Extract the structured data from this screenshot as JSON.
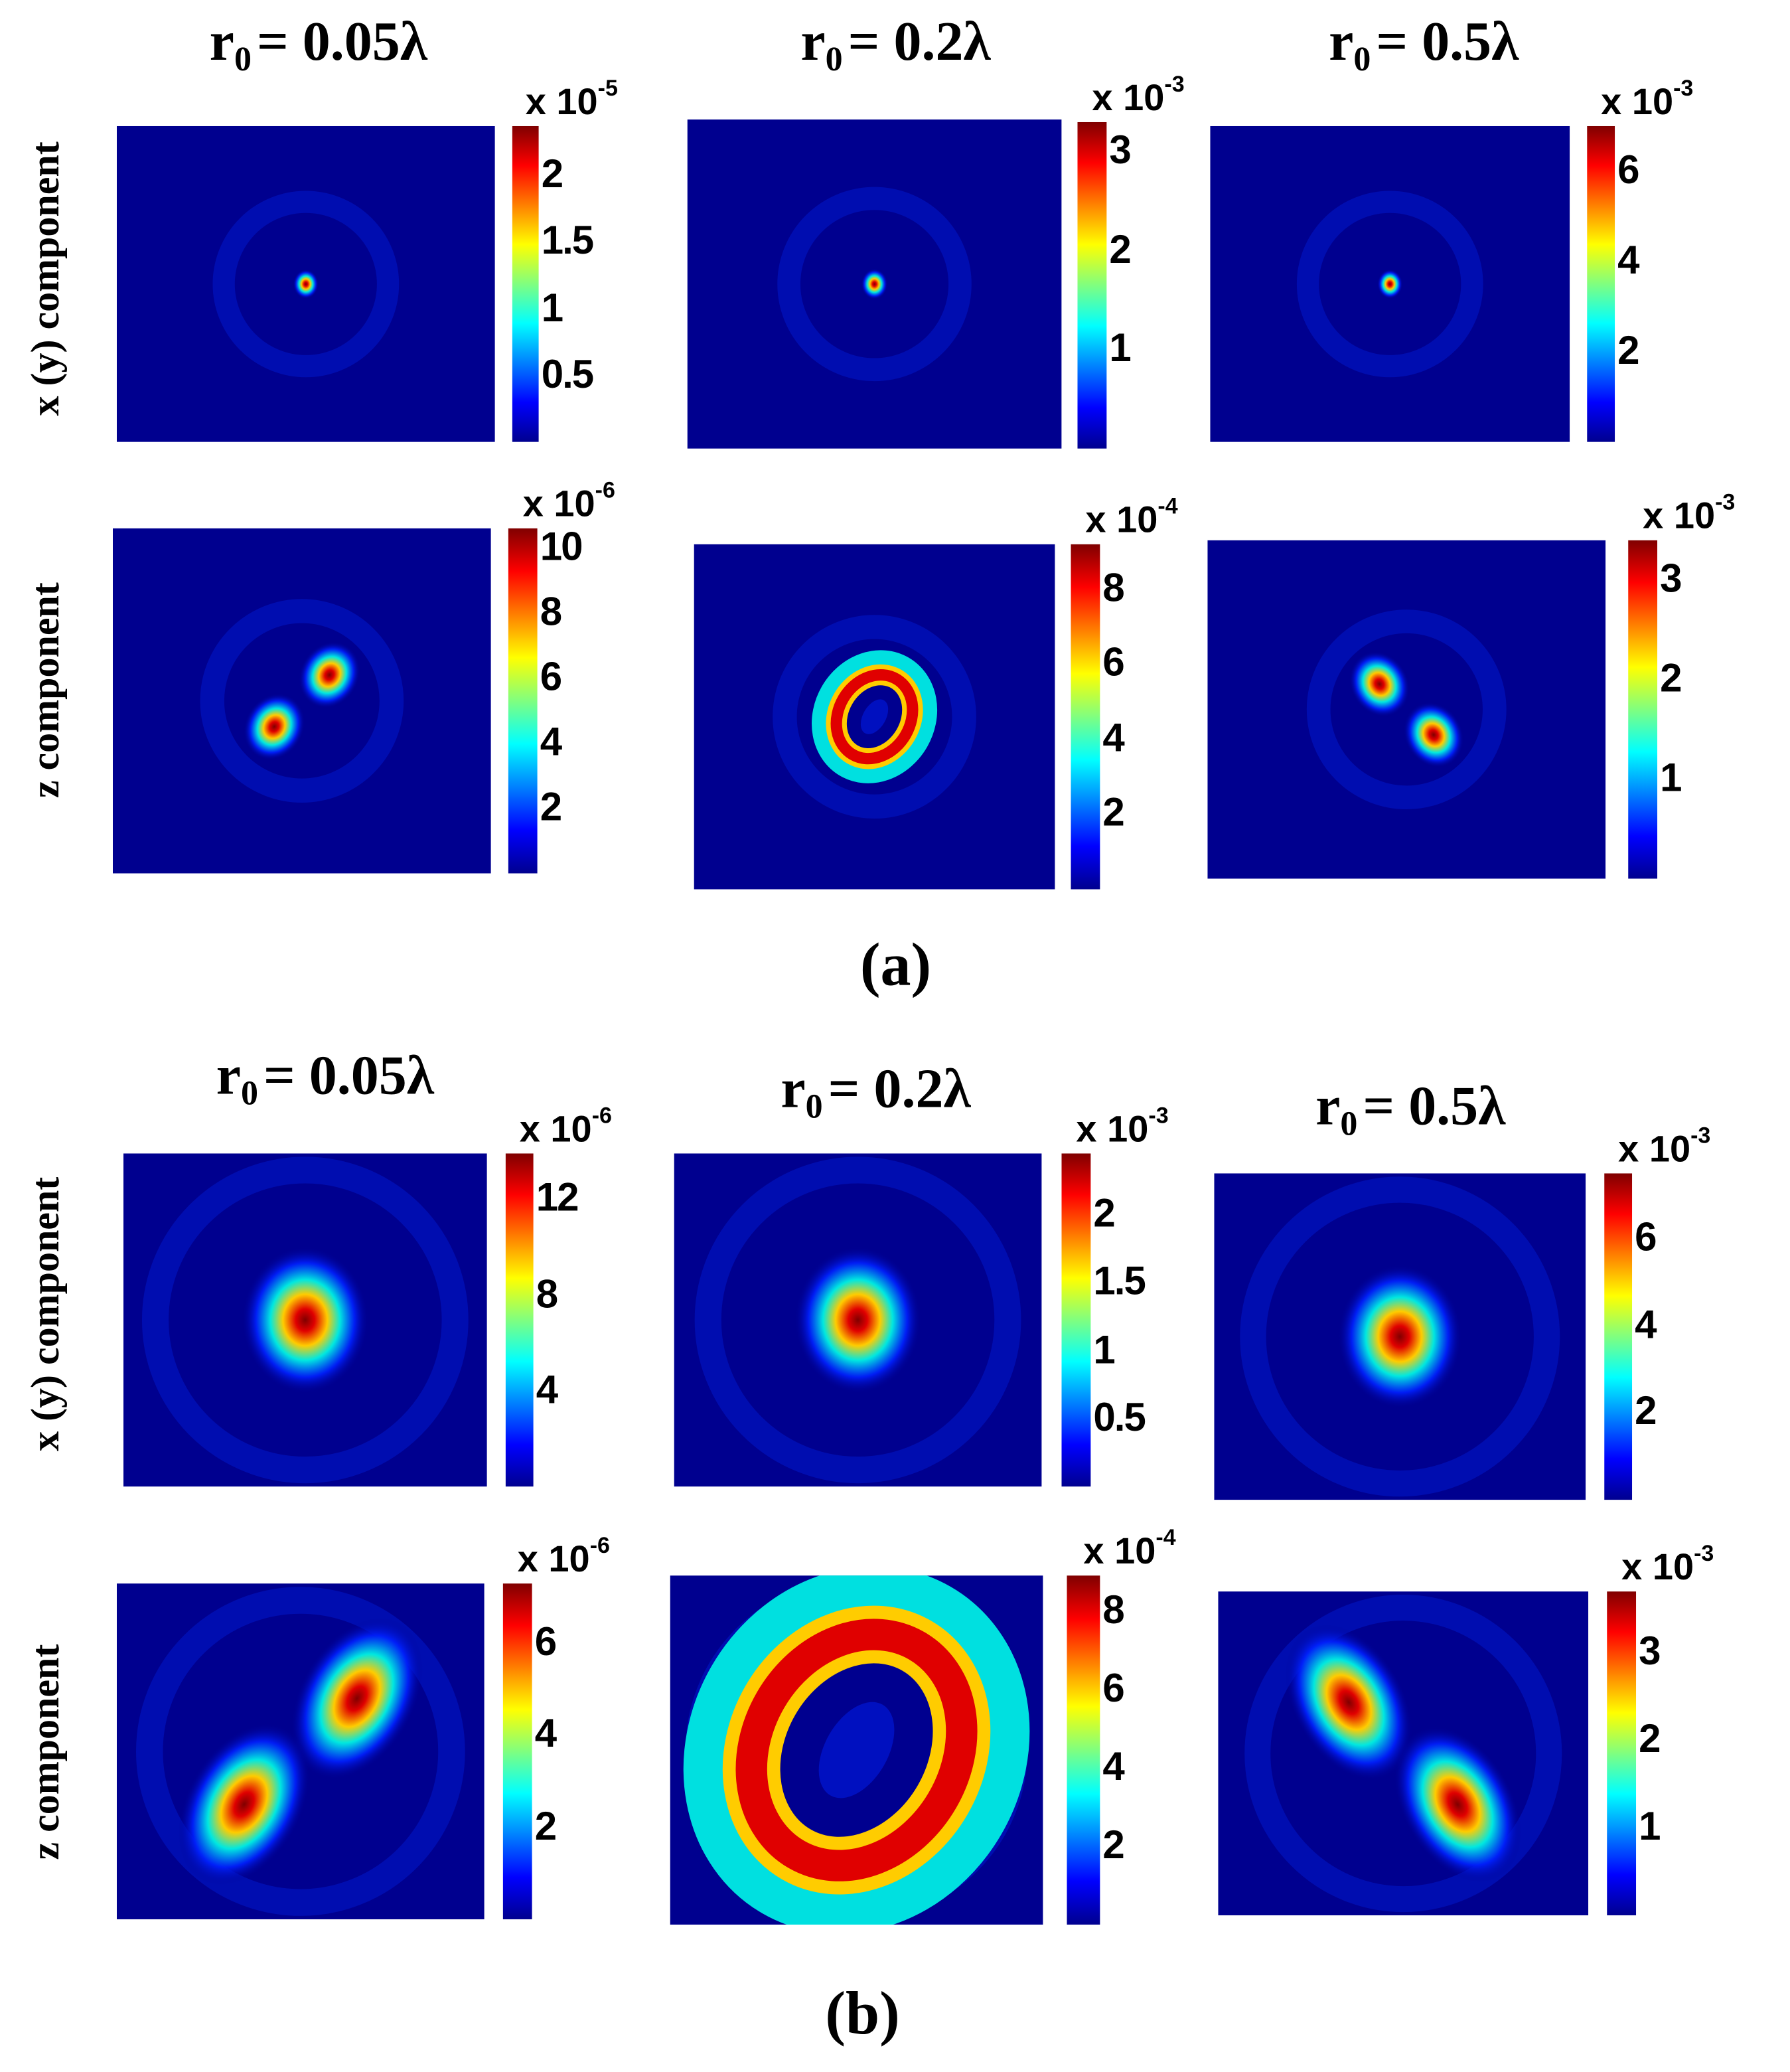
{
  "figure": {
    "panel_labels": [
      "(a)",
      "(b)"
    ],
    "column_titles": [
      {
        "var": "r",
        "sub": "0",
        "value": "= 0.05λ"
      },
      {
        "var": "r",
        "sub": "0",
        "value": "= 0.2λ"
      },
      {
        "var": "r",
        "sub": "0",
        "value": "= 0.5λ"
      }
    ],
    "row_labels": [
      "x (y) component",
      "z component"
    ]
  },
  "chart_data": [
    {
      "type": "heatmap",
      "panel": "(a)",
      "row": "x (y) component",
      "column": "r0 = 0.05λ",
      "colormap": "jet",
      "pattern": "central-spot",
      "colorbar": {
        "multiplier": "x 10",
        "exponent": "-5",
        "range": [
          0,
          2.37
        ],
        "ticks": [
          "0.5",
          "1",
          "1.5",
          "2"
        ]
      }
    },
    {
      "type": "heatmap",
      "panel": "(a)",
      "row": "x (y) component",
      "column": "r0 = 0.2λ",
      "colormap": "jet",
      "pattern": "central-spot",
      "colorbar": {
        "multiplier": "x 10",
        "exponent": "-3",
        "range": [
          0,
          3.3
        ],
        "ticks": [
          "1",
          "2",
          "3"
        ]
      }
    },
    {
      "type": "heatmap",
      "panel": "(a)",
      "row": "x (y) component",
      "column": "r0 = 0.5λ",
      "colormap": "jet",
      "pattern": "central-spot",
      "colorbar": {
        "multiplier": "x 10",
        "exponent": "-3",
        "range": [
          0,
          7.0
        ],
        "ticks": [
          "2",
          "4",
          "6"
        ]
      }
    },
    {
      "type": "heatmap",
      "panel": "(a)",
      "row": "z component",
      "column": "r0 = 0.05λ",
      "colormap": "jet",
      "pattern": "two-lobes-antidiagonal",
      "colorbar": {
        "multiplier": "x 10",
        "exponent": "-6",
        "range": [
          0,
          10.6
        ],
        "ticks": [
          "2",
          "4",
          "6",
          "8",
          "10"
        ]
      }
    },
    {
      "type": "heatmap",
      "panel": "(a)",
      "row": "z component",
      "column": "r0 = 0.2λ",
      "colormap": "jet",
      "pattern": "ring",
      "colorbar": {
        "multiplier": "x 10",
        "exponent": "-4",
        "range": [
          0,
          9.2
        ],
        "ticks": [
          "2",
          "4",
          "6",
          "8"
        ]
      }
    },
    {
      "type": "heatmap",
      "panel": "(a)",
      "row": "z component",
      "column": "r0 = 0.5λ",
      "colormap": "jet",
      "pattern": "two-lobes-diagonal",
      "colorbar": {
        "multiplier": "x 10",
        "exponent": "-3",
        "range": [
          0,
          3.4
        ],
        "ticks": [
          "1",
          "2",
          "3"
        ]
      }
    },
    {
      "type": "heatmap",
      "panel": "(b)",
      "row": "x (y) component",
      "column": "r0 = 0.05λ",
      "colormap": "jet",
      "pattern": "central-spot",
      "colorbar": {
        "multiplier": "x 10",
        "exponent": "-6",
        "range": [
          0,
          13.9
        ],
        "ticks": [
          "4",
          "8",
          "12"
        ]
      }
    },
    {
      "type": "heatmap",
      "panel": "(b)",
      "row": "x (y) component",
      "column": "r0 = 0.2λ",
      "colormap": "jet",
      "pattern": "central-spot",
      "colorbar": {
        "multiplier": "x 10",
        "exponent": "-3",
        "range": [
          0,
          2.45
        ],
        "ticks": [
          "0.5",
          "1",
          "1.5",
          "2"
        ]
      }
    },
    {
      "type": "heatmap",
      "panel": "(b)",
      "row": "x (y) component",
      "column": "r0 = 0.5λ",
      "colormap": "jet",
      "pattern": "central-spot",
      "colorbar": {
        "multiplier": "x 10",
        "exponent": "-3",
        "range": [
          0,
          7.5
        ],
        "ticks": [
          "2",
          "4",
          "6"
        ]
      }
    },
    {
      "type": "heatmap",
      "panel": "(b)",
      "row": "z component",
      "column": "r0 = 0.05λ",
      "colormap": "jet",
      "pattern": "two-lobes-antidiagonal",
      "colorbar": {
        "multiplier": "x 10",
        "exponent": "-6",
        "range": [
          0,
          7.3
        ],
        "ticks": [
          "2",
          "4",
          "6"
        ]
      }
    },
    {
      "type": "heatmap",
      "panel": "(b)",
      "row": "z component",
      "column": "r0 = 0.2λ",
      "colormap": "jet",
      "pattern": "ring",
      "colorbar": {
        "multiplier": "x 10",
        "exponent": "-4",
        "range": [
          0,
          8.9
        ],
        "ticks": [
          "2",
          "4",
          "6",
          "8"
        ]
      }
    },
    {
      "type": "heatmap",
      "panel": "(b)",
      "row": "z component",
      "column": "r0 = 0.5λ",
      "colormap": "jet",
      "pattern": "two-lobes-diagonal",
      "colorbar": {
        "multiplier": "x 10",
        "exponent": "-3",
        "range": [
          0,
          3.7
        ],
        "ticks": [
          "1",
          "2",
          "3"
        ]
      }
    }
  ]
}
